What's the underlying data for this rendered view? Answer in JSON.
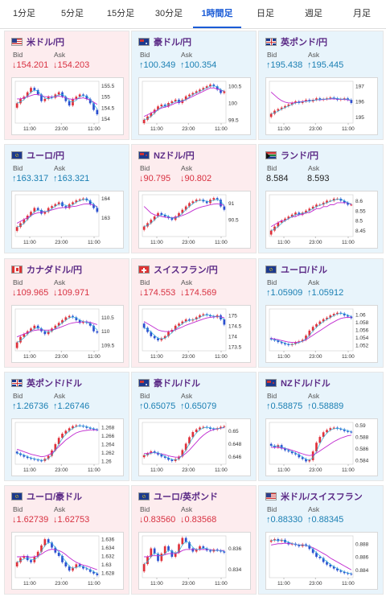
{
  "tabs": [
    "1分足",
    "5分足",
    "15分足",
    "30分足",
    "1時間足",
    "日足",
    "週足",
    "月足"
  ],
  "active_tab": 4,
  "labels": {
    "bid": "Bid",
    "ask": "Ask"
  },
  "colors": {
    "up": "#1a7fb3",
    "down": "#d83040",
    "up_bg": "#e8f4fb",
    "down_bg": "#fdecee",
    "purple": "#c02ad0",
    "cyan": "#2ab0d8"
  },
  "x_ticks": [
    "11:00",
    "23:00",
    "11:00"
  ],
  "cards": [
    {
      "name": "米ドル/円",
      "flag": "us",
      "dir": "down",
      "bid": "↓154.201",
      "ask": "↓154.203",
      "chart_data": {
        "type": "candlestick",
        "yticks": [
          "155.5",
          "155",
          "154.5",
          "154"
        ],
        "ylim": [
          153.8,
          155.7
        ],
        "close": [
          154.7,
          154.9,
          155.0,
          155.2,
          155.4,
          155.3,
          155.1,
          154.8,
          154.9,
          155.0,
          154.95,
          155.1,
          155.2,
          155.0,
          154.8,
          154.6,
          154.9,
          155.0,
          155.1,
          155.05,
          154.9,
          154.7,
          154.4,
          154.2
        ],
        "ma": [
          154.9,
          154.9,
          154.95,
          155.0,
          155.05,
          155.1,
          155.1,
          155.05,
          155.0,
          155.0,
          154.98,
          155.0,
          155.02,
          155.0,
          154.95,
          154.9,
          154.88,
          154.9,
          154.92,
          154.95,
          154.9,
          154.85,
          154.75,
          154.65
        ]
      }
    },
    {
      "name": "豪ドル/円",
      "flag": "au",
      "dir": "up",
      "bid": "↑100.349",
      "ask": "↑100.354",
      "chart_data": {
        "type": "candlestick",
        "yticks": [
          "100.5",
          "100",
          "99.5"
        ],
        "ylim": [
          99.4,
          100.65
        ],
        "close": [
          99.5,
          99.6,
          99.7,
          99.8,
          99.9,
          99.95,
          99.9,
          100.0,
          100.05,
          100.1,
          100.0,
          100.1,
          100.2,
          100.25,
          100.3,
          100.35,
          100.4,
          100.45,
          100.5,
          100.55,
          100.5,
          100.4,
          100.3,
          100.35
        ],
        "ma": [
          99.6,
          99.65,
          99.7,
          99.75,
          99.8,
          99.85,
          99.88,
          99.9,
          99.95,
          100.0,
          100.02,
          100.05,
          100.1,
          100.15,
          100.2,
          100.25,
          100.3,
          100.35,
          100.4,
          100.45,
          100.45,
          100.42,
          100.38,
          100.35
        ]
      }
    },
    {
      "name": "英ポンド/円",
      "flag": "gb",
      "dir": "up",
      "bid": "↑195.438",
      "ask": "↑195.445",
      "chart_data": {
        "type": "candlestick",
        "yticks": [
          "197",
          "196",
          "195"
        ],
        "ylim": [
          194.6,
          197.3
        ],
        "close": [
          195.2,
          195.4,
          195.5,
          195.6,
          195.7,
          195.8,
          195.9,
          196.0,
          195.9,
          196.0,
          196.1,
          196.0,
          196.1,
          196.2,
          196.1,
          196.15,
          196.2,
          196.25,
          196.2,
          196.1,
          196.15,
          196.2,
          196.1,
          195.9
        ],
        "ma": [
          196.6,
          196.4,
          196.2,
          196.05,
          195.95,
          195.9,
          195.9,
          195.92,
          195.95,
          196.0,
          196.02,
          196.05,
          196.07,
          196.1,
          196.1,
          196.12,
          196.14,
          196.16,
          196.17,
          196.15,
          196.13,
          196.12,
          196.1,
          196.05
        ]
      }
    },
    {
      "name": "ユーロ/円",
      "flag": "eu",
      "dir": "up",
      "bid": "↑163.317",
      "ask": "↑163.321",
      "chart_data": {
        "type": "candlestick",
        "yticks": [
          "164",
          "163"
        ],
        "ylim": [
          162.0,
          164.2
        ],
        "close": [
          162.5,
          162.7,
          162.9,
          163.1,
          163.3,
          163.5,
          163.4,
          163.2,
          163.3,
          163.5,
          163.6,
          163.7,
          163.8,
          163.6,
          163.5,
          163.7,
          163.8,
          163.9,
          163.95,
          164.0,
          163.9,
          163.7,
          163.5,
          163.3
        ],
        "ma": [
          162.7,
          162.8,
          162.9,
          163.0,
          163.1,
          163.2,
          163.25,
          163.28,
          163.3,
          163.35,
          163.4,
          163.45,
          163.5,
          163.52,
          163.53,
          163.55,
          163.58,
          163.6,
          163.65,
          163.7,
          163.72,
          163.7,
          163.65,
          163.58
        ]
      }
    },
    {
      "name": "NZドル/円",
      "flag": "nz",
      "dir": "down",
      "bid": "↓90.795",
      "ask": "↓90.802",
      "chart_data": {
        "type": "candlestick",
        "yticks": [
          "91",
          "90.5"
        ],
        "ylim": [
          90.0,
          91.25
        ],
        "close": [
          90.3,
          90.4,
          90.5,
          90.6,
          90.7,
          90.65,
          90.6,
          90.55,
          90.5,
          90.6,
          90.7,
          90.8,
          90.9,
          91.0,
          91.05,
          91.1,
          91.1,
          91.05,
          91.0,
          91.1,
          91.15,
          91.1,
          90.9,
          90.8
        ],
        "ma": [
          90.9,
          90.8,
          90.7,
          90.65,
          90.62,
          90.6,
          90.58,
          90.57,
          90.56,
          90.58,
          90.6,
          90.63,
          90.67,
          90.72,
          90.78,
          90.83,
          90.87,
          90.9,
          90.92,
          90.95,
          90.97,
          90.98,
          90.96,
          90.93
        ]
      }
    },
    {
      "name": "ランド/円",
      "flag": "za",
      "dir": "flat",
      "bid": "8.584",
      "ask": "8.593",
      "chart_data": {
        "type": "candlestick",
        "yticks": [
          "8.6",
          "8.55",
          "8.5",
          "8.45"
        ],
        "ylim": [
          8.42,
          8.63
        ],
        "close": [
          8.45,
          8.47,
          8.49,
          8.5,
          8.51,
          8.52,
          8.53,
          8.54,
          8.53,
          8.54,
          8.55,
          8.56,
          8.57,
          8.58,
          8.58,
          8.59,
          8.6,
          8.6,
          8.61,
          8.61,
          8.6,
          8.59,
          8.58,
          8.58
        ],
        "ma": [
          8.47,
          8.48,
          8.49,
          8.5,
          8.5,
          8.51,
          8.52,
          8.52,
          8.53,
          8.53,
          8.54,
          8.54,
          8.55,
          8.56,
          8.56,
          8.57,
          8.57,
          8.58,
          8.58,
          8.59,
          8.59,
          8.59,
          8.59,
          8.58
        ]
      }
    },
    {
      "name": "カナダドル/円",
      "flag": "ca",
      "dir": "down",
      "bid": "↓109.965",
      "ask": "↓109.971",
      "chart_data": {
        "type": "candlestick",
        "yticks": [
          "110.5",
          "110",
          "109.5"
        ],
        "ylim": [
          109.3,
          110.8
        ],
        "close": [
          109.6,
          109.8,
          109.9,
          110.0,
          110.1,
          110.2,
          110.1,
          110.0,
          109.9,
          110.0,
          110.1,
          110.2,
          110.3,
          110.4,
          110.5,
          110.55,
          110.5,
          110.4,
          110.3,
          110.35,
          110.3,
          110.2,
          110.0,
          109.95
        ],
        "ma": [
          109.8,
          109.85,
          109.9,
          109.95,
          110.0,
          110.03,
          110.05,
          110.05,
          110.04,
          110.04,
          110.05,
          110.08,
          110.12,
          110.17,
          110.22,
          110.27,
          110.3,
          110.32,
          110.33,
          110.34,
          110.34,
          110.32,
          110.28,
          110.24
        ]
      }
    },
    {
      "name": "スイスフラン/円",
      "flag": "ch",
      "dir": "down",
      "bid": "↓174.553",
      "ask": "↓174.569",
      "chart_data": {
        "type": "candlestick",
        "yticks": [
          "175",
          "174.5",
          "174",
          "173.5"
        ],
        "ylim": [
          173.3,
          175.3
        ],
        "close": [
          174.4,
          174.2,
          174.0,
          173.9,
          173.8,
          173.9,
          174.0,
          174.2,
          174.3,
          174.5,
          174.6,
          174.7,
          174.8,
          174.75,
          174.8,
          174.9,
          175.0,
          175.05,
          175.0,
          174.95,
          174.9,
          175.0,
          174.8,
          174.55
        ],
        "ma": [
          174.7,
          174.6,
          174.5,
          174.4,
          174.3,
          174.25,
          174.22,
          174.22,
          174.25,
          174.3,
          174.37,
          174.44,
          174.52,
          174.58,
          174.64,
          174.7,
          174.76,
          174.82,
          174.87,
          174.9,
          174.92,
          174.94,
          174.92,
          174.88
        ]
      }
    },
    {
      "name": "ユーロ/ドル",
      "flag": "eu",
      "dir": "up",
      "bid": "↑1.05909",
      "ask": "↑1.05912",
      "chart_data": {
        "type": "candlestick",
        "yticks": [
          "1.06",
          "1.058",
          "1.056",
          "1.054",
          "1.052"
        ],
        "ylim": [
          1.0505,
          1.0615
        ],
        "close": [
          1.0535,
          1.0532,
          1.0528,
          1.0525,
          1.0522,
          1.052,
          1.0523,
          1.0527,
          1.053,
          1.0534,
          1.0545,
          1.0558,
          1.0568,
          1.0575,
          1.0582,
          1.0588,
          1.0592,
          1.0598,
          1.0602,
          1.0605,
          1.0603,
          1.0598,
          1.0595,
          1.0591
        ],
        "ma": [
          1.0538,
          1.0536,
          1.0534,
          1.0532,
          1.053,
          1.0528,
          1.0527,
          1.0527,
          1.0528,
          1.053,
          1.0534,
          1.054,
          1.0546,
          1.0552,
          1.0558,
          1.0564,
          1.057,
          1.0576,
          1.0581,
          1.0586,
          1.059,
          1.0592,
          1.0593,
          1.0593
        ]
      }
    },
    {
      "name": "英ポンド/ドル",
      "flag": "gb",
      "dir": "up",
      "bid": "↑1.26736",
      "ask": "↑1.26746",
      "chart_data": {
        "type": "candlestick",
        "yticks": [
          "1.268",
          "1.266",
          "1.264",
          "1.262",
          "1.26"
        ],
        "ylim": [
          1.2592,
          1.2692
        ],
        "close": [
          1.2618,
          1.2614,
          1.261,
          1.2607,
          1.2605,
          1.2603,
          1.2601,
          1.26,
          1.2605,
          1.2612,
          1.2625,
          1.264,
          1.2655,
          1.2665,
          1.2672,
          1.2678,
          1.2683,
          1.2685,
          1.2684,
          1.2682,
          1.2679,
          1.2677,
          1.2675,
          1.2674
        ],
        "ma": [
          1.2628,
          1.2625,
          1.2622,
          1.2619,
          1.2616,
          1.2614,
          1.2612,
          1.261,
          1.2611,
          1.2614,
          1.2619,
          1.2626,
          1.2634,
          1.2642,
          1.265,
          1.2656,
          1.2662,
          1.2667,
          1.267,
          1.2672,
          1.2673,
          1.2674,
          1.2674,
          1.2674
        ]
      }
    },
    {
      "name": "豪ドル/ドル",
      "flag": "au",
      "dir": "up",
      "bid": "↑0.65075",
      "ask": "↑0.65079",
      "chart_data": {
        "type": "candlestick",
        "yticks": [
          "0.65",
          "0.648",
          "0.646"
        ],
        "ylim": [
          0.6448,
          0.6513
        ],
        "close": [
          0.6462,
          0.6465,
          0.6468,
          0.6466,
          0.6463,
          0.646,
          0.6458,
          0.6455,
          0.6453,
          0.6456,
          0.646,
          0.647,
          0.648,
          0.649,
          0.6498,
          0.6502,
          0.6505,
          0.6506,
          0.6505,
          0.6503,
          0.6502,
          0.6504,
          0.6506,
          0.6507
        ],
        "ma": [
          0.6465,
          0.6465,
          0.6466,
          0.6466,
          0.6465,
          0.6464,
          0.6463,
          0.6461,
          0.646,
          0.6459,
          0.6459,
          0.6461,
          0.6465,
          0.647,
          0.6476,
          0.6482,
          0.6488,
          0.6493,
          0.6497,
          0.65,
          0.6502,
          0.6503,
          0.6504,
          0.6505
        ]
      }
    },
    {
      "name": "NZドル/ドル",
      "flag": "nz",
      "dir": "up",
      "bid": "↑0.58875",
      "ask": "↑0.58889",
      "chart_data": {
        "type": "candlestick",
        "yticks": [
          "0.59",
          "0.588",
          "0.586",
          "0.584"
        ],
        "ylim": [
          0.5833,
          0.5905
        ],
        "close": [
          0.5865,
          0.5862,
          0.5866,
          0.586,
          0.5857,
          0.5855,
          0.5852,
          0.585,
          0.5845,
          0.5842,
          0.5838,
          0.584,
          0.5855,
          0.587,
          0.588,
          0.5888,
          0.5892,
          0.5895,
          0.5896,
          0.5894,
          0.5893,
          0.589,
          0.5889,
          0.5888
        ],
        "ma": [
          0.5862,
          0.5862,
          0.5862,
          0.5861,
          0.586,
          0.5859,
          0.5857,
          0.5855,
          0.5853,
          0.5851,
          0.5849,
          0.5848,
          0.5849,
          0.5852,
          0.5856,
          0.586,
          0.5864,
          0.5868,
          0.5872,
          0.5875,
          0.5878,
          0.588,
          0.5882,
          0.5883
        ]
      }
    },
    {
      "name": "ユーロ/豪ドル",
      "flag": "eu",
      "dir": "down",
      "bid": "↓1.62739",
      "ask": "↓1.62753",
      "chart_data": {
        "type": "candlestick",
        "yticks": [
          "1.636",
          "1.634",
          "1.632",
          "1.63",
          "1.628"
        ],
        "ylim": [
          1.6268,
          1.6368
        ],
        "close": [
          1.6305,
          1.6315,
          1.632,
          1.631,
          1.6305,
          1.6318,
          1.633,
          1.6345,
          1.636,
          1.6352,
          1.634,
          1.6328,
          1.632,
          1.6305,
          1.6295,
          1.6285,
          1.6292,
          1.63,
          1.6295,
          1.629,
          1.6288,
          1.6282,
          1.6278,
          1.6274
        ],
        "ma": [
          1.6318,
          1.6318,
          1.6319,
          1.6318,
          1.6317,
          1.6318,
          1.632,
          1.6324,
          1.633,
          1.6334,
          1.6336,
          1.6335,
          1.6333,
          1.6329,
          1.6323,
          1.6316,
          1.631,
          1.6305,
          1.6301,
          1.6298,
          1.6296,
          1.6293,
          1.629,
          1.6287
        ]
      }
    },
    {
      "name": "ユーロ/英ポンド",
      "flag": "eu",
      "dir": "down",
      "bid": "↓0.83560",
      "ask": "↓0.83568",
      "chart_data": {
        "type": "candlestick",
        "yticks": [
          "0.836",
          "0.834"
        ],
        "ylim": [
          0.8332,
          0.8372
        ],
        "close": [
          0.8345,
          0.8352,
          0.836,
          0.8355,
          0.8348,
          0.8355,
          0.8362,
          0.8358,
          0.8352,
          0.8356,
          0.8364,
          0.837,
          0.8366,
          0.836,
          0.8357,
          0.8359,
          0.8362,
          0.836,
          0.8358,
          0.8357,
          0.8359,
          0.8358,
          0.8357,
          0.8356
        ],
        "ma": [
          0.8352,
          0.8352,
          0.8353,
          0.8353,
          0.8353,
          0.8353,
          0.8354,
          0.8355,
          0.8355,
          0.8355,
          0.8356,
          0.8358,
          0.8359,
          0.8359,
          0.8359,
          0.8359,
          0.8359,
          0.8359,
          0.8359,
          0.8359,
          0.8358,
          0.8358,
          0.8358,
          0.8358
        ]
      }
    },
    {
      "name": "米ドル/スイスフラン",
      "flag": "us",
      "dir": "up",
      "bid": "↑0.88330",
      "ask": "↑0.88345",
      "chart_data": {
        "type": "candlestick",
        "yticks": [
          "0.888",
          "0.886",
          "0.884"
        ],
        "ylim": [
          0.8828,
          0.8892
        ],
        "close": [
          0.8885,
          0.8887,
          0.8884,
          0.8886,
          0.8882,
          0.8879,
          0.888,
          0.8878,
          0.8876,
          0.8879,
          0.8877,
          0.8872,
          0.8866,
          0.886,
          0.8858,
          0.8852,
          0.8848,
          0.8845,
          0.8842,
          0.8839,
          0.8837,
          0.8835,
          0.8834,
          0.8833
        ],
        "ma": [
          0.8878,
          0.8879,
          0.888,
          0.888,
          0.8881,
          0.888,
          0.888,
          0.8879,
          0.8878,
          0.8878,
          0.8877,
          0.8876,
          0.8874,
          0.8871,
          0.8868,
          0.8865,
          0.8862,
          0.8858,
          0.8855,
          0.8852,
          0.8849,
          0.8846,
          0.8843,
          0.884
        ]
      }
    }
  ]
}
